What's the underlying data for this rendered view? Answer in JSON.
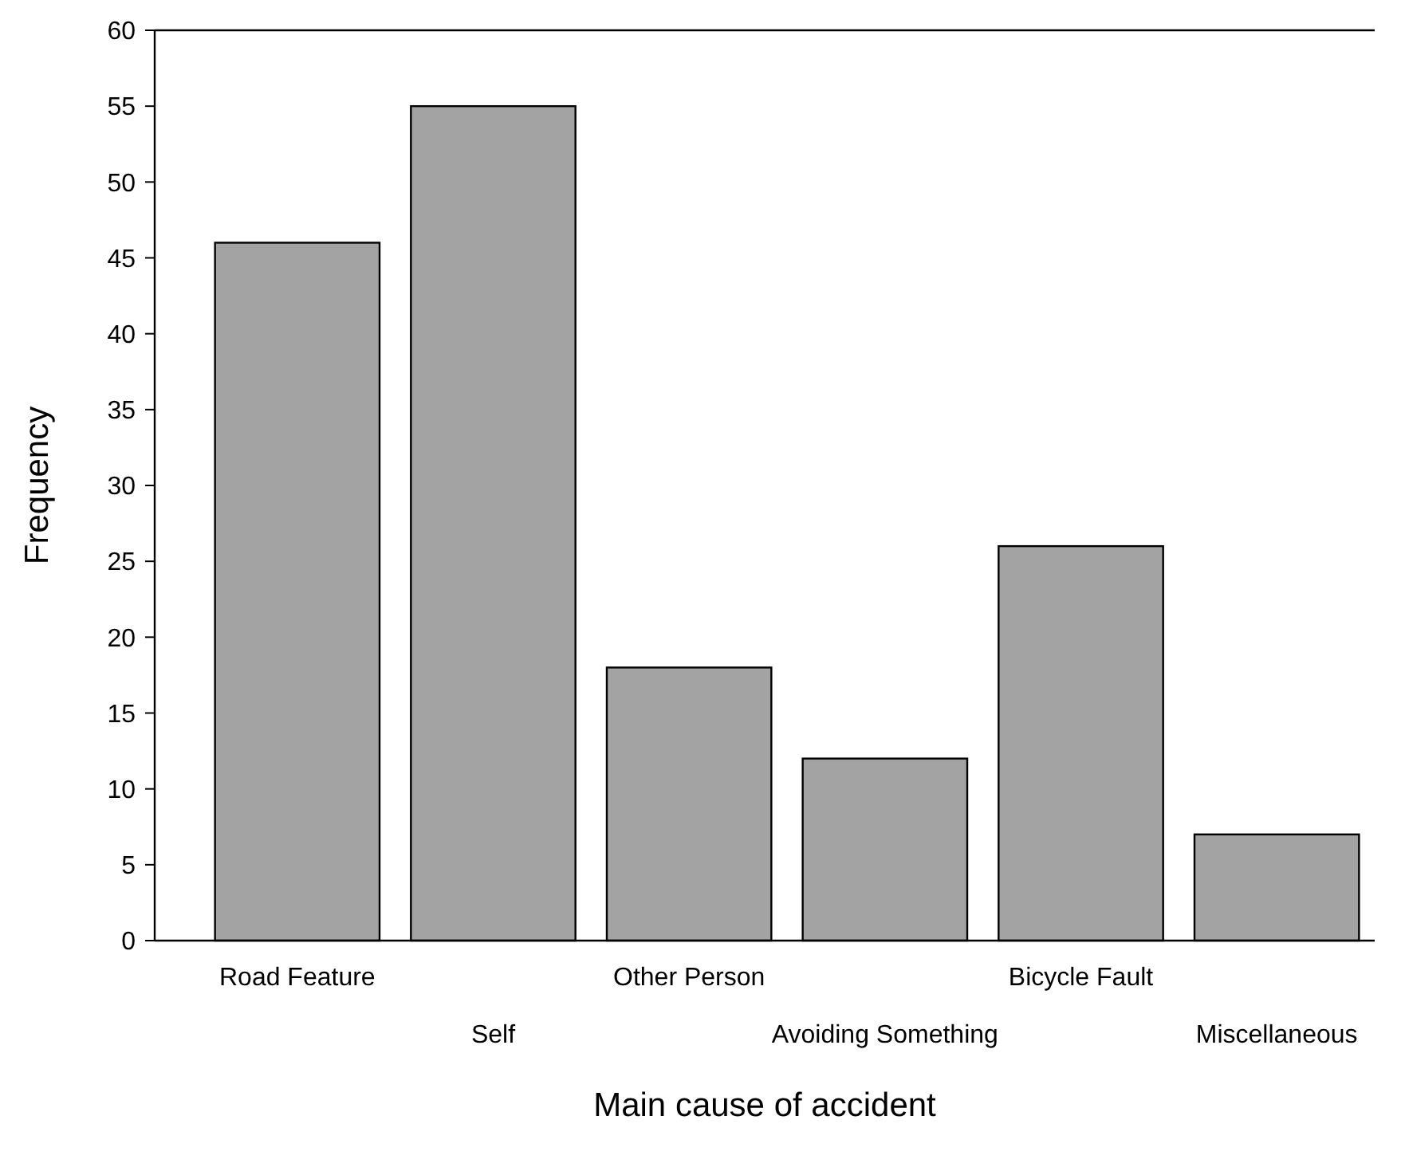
{
  "chart_data": {
    "type": "bar",
    "xlabel": "Main cause of accident",
    "ylabel": "Frequency",
    "categories": [
      "Road Feature",
      "Self",
      "Other Person",
      "Avoiding Something",
      "Bicycle Fault",
      "Miscellaneous"
    ],
    "values": [
      46,
      55,
      18,
      12,
      26,
      7
    ],
    "color": "#a3a3a3",
    "ylim": [
      0,
      60
    ],
    "yticks": [
      0,
      5,
      10,
      15,
      20,
      25,
      30,
      35,
      40,
      45,
      50,
      55,
      60
    ],
    "grid": false
  }
}
